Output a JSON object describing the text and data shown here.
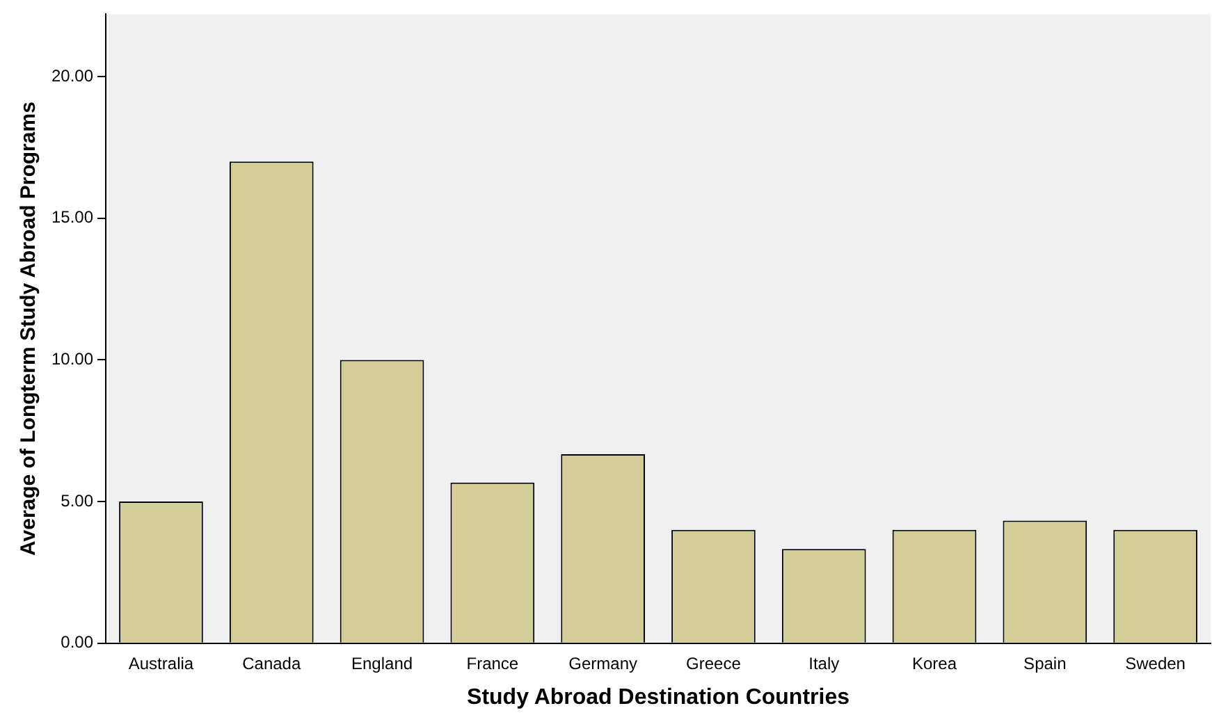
{
  "chart_data": {
    "type": "bar",
    "xlabel": "Study Abroad Destination Countries",
    "ylabel": "Average of Longterm Study Abroad Programs",
    "categories": [
      "Australia",
      "Canada",
      "England",
      "France",
      "Germany",
      "Greece",
      "Italy",
      "Korea",
      "Spain",
      "Sweden"
    ],
    "values": [
      5.0,
      17.0,
      10.0,
      5.67,
      6.67,
      4.0,
      3.33,
      4.0,
      4.33,
      4.0
    ],
    "color": "#d3ce97",
    "ylim": [
      0,
      22.2
    ],
    "yticks": [
      {
        "value": 0,
        "label": "0.00"
      },
      {
        "value": 5,
        "label": "5.00"
      },
      {
        "value": 10,
        "label": "10.00"
      },
      {
        "value": 15,
        "label": "15.00"
      },
      {
        "value": 20,
        "label": "20.00"
      }
    ],
    "grid": false,
    "legend": false
  }
}
